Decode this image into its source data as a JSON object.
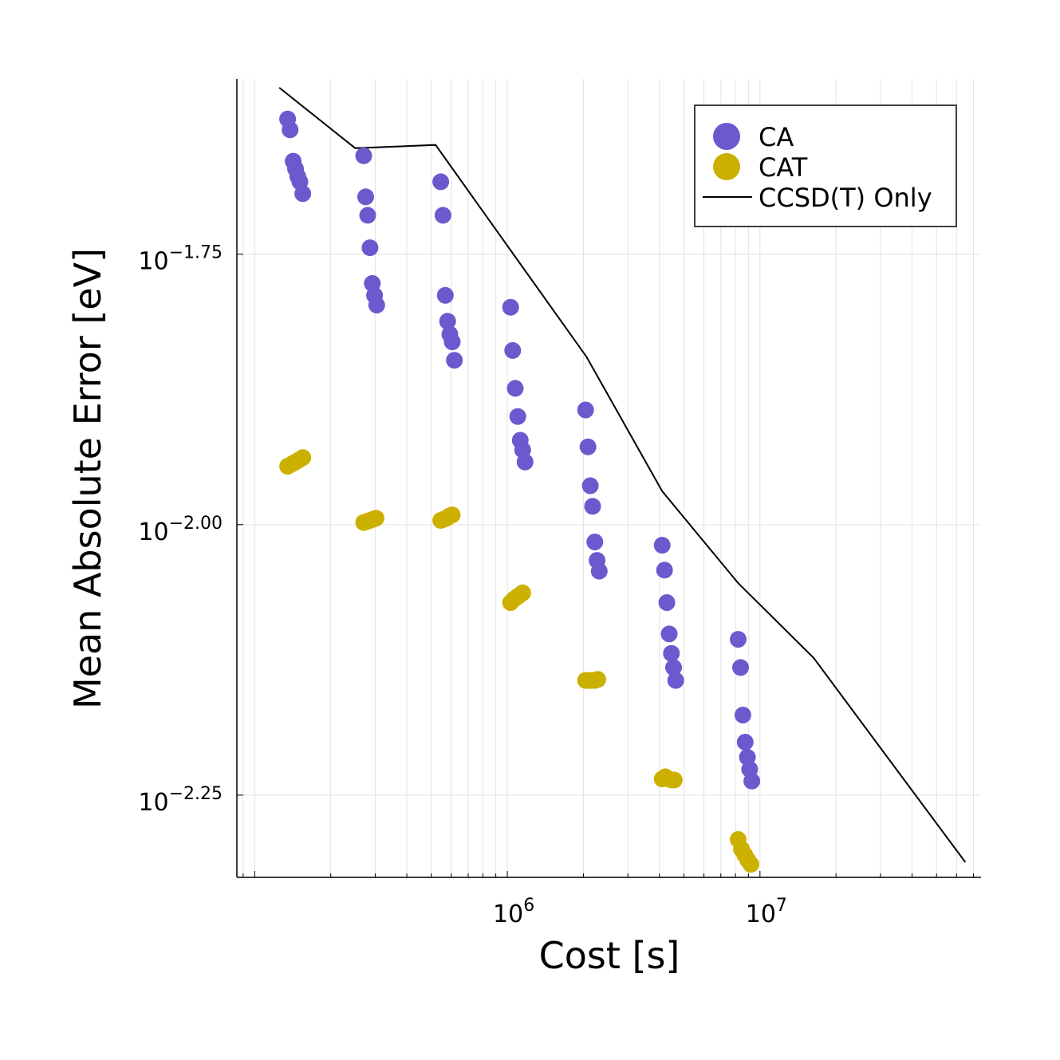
{
  "chart_data": {
    "type": "scatter",
    "x_scale": "log10",
    "y_scale": "log10",
    "xlabel": "Cost [s]",
    "ylabel": "Mean Absolute Error [eV]",
    "xlim": [
      85000,
      75000000
    ],
    "ylim_log10": [
      -2.326,
      -1.588
    ],
    "grid": true,
    "legend_position": "top-right",
    "x_ticks": [
      {
        "value": 1000000,
        "base": "10",
        "exp": "6"
      },
      {
        "value": 10000000,
        "base": "10",
        "exp": "7"
      }
    ],
    "y_ticks": [
      {
        "log10": -1.75,
        "base": "10",
        "exp": "−1.75"
      },
      {
        "log10": -2.0,
        "base": "10",
        "exp": "−2.00"
      },
      {
        "log10": -2.25,
        "base": "10",
        "exp": "−2.25"
      }
    ],
    "series": [
      {
        "name": "CA",
        "kind": "scatter",
        "color": "#6a5acd",
        "points": [
          [
            135000,
            -1.625
          ],
          [
            138000,
            -1.635
          ],
          [
            142000,
            -1.664
          ],
          [
            145000,
            -1.671
          ],
          [
            148000,
            -1.678
          ],
          [
            151000,
            -1.683
          ],
          [
            155000,
            -1.694
          ],
          [
            270000,
            -1.659
          ],
          [
            275000,
            -1.697
          ],
          [
            280000,
            -1.714
          ],
          [
            286000,
            -1.744
          ],
          [
            292000,
            -1.777
          ],
          [
            298000,
            -1.788
          ],
          [
            304000,
            -1.797
          ],
          [
            545000,
            -1.683
          ],
          [
            556000,
            -1.714
          ],
          [
            568000,
            -1.788
          ],
          [
            580000,
            -1.812
          ],
          [
            592000,
            -1.824
          ],
          [
            605000,
            -1.831
          ],
          [
            617000,
            -1.848
          ],
          [
            1030000,
            -1.799
          ],
          [
            1050000,
            -1.839
          ],
          [
            1075000,
            -1.874
          ],
          [
            1100000,
            -1.9
          ],
          [
            1125000,
            -1.922
          ],
          [
            1150000,
            -1.931
          ],
          [
            1175000,
            -1.942
          ],
          [
            2040000,
            -1.894
          ],
          [
            2085000,
            -1.928
          ],
          [
            2130000,
            -1.964
          ],
          [
            2175000,
            -1.983
          ],
          [
            2220000,
            -2.016
          ],
          [
            2265000,
            -2.033
          ],
          [
            2310000,
            -2.043
          ],
          [
            4100000,
            -2.019
          ],
          [
            4190000,
            -2.042
          ],
          [
            4280000,
            -2.072
          ],
          [
            4370000,
            -2.101
          ],
          [
            4460000,
            -2.119
          ],
          [
            4550000,
            -2.132
          ],
          [
            4640000,
            -2.144
          ],
          [
            8200000,
            -2.106
          ],
          [
            8380000,
            -2.132
          ],
          [
            8560000,
            -2.176
          ],
          [
            8740000,
            -2.201
          ],
          [
            8920000,
            -2.215
          ],
          [
            9100000,
            -2.226
          ],
          [
            9280000,
            -2.237
          ]
        ]
      },
      {
        "name": "CAT",
        "kind": "scatter",
        "color": "#ccb000",
        "points": [
          [
            135000,
            -1.946
          ],
          [
            140000,
            -1.944
          ],
          [
            145000,
            -1.942
          ],
          [
            150000,
            -1.94
          ],
          [
            155000,
            -1.938
          ],
          [
            270000,
            -1.998
          ],
          [
            278000,
            -1.997
          ],
          [
            286000,
            -1.996
          ],
          [
            294000,
            -1.995
          ],
          [
            302000,
            -1.994
          ],
          [
            545000,
            -1.996
          ],
          [
            560000,
            -1.995
          ],
          [
            575000,
            -1.994
          ],
          [
            590000,
            -1.992
          ],
          [
            605000,
            -1.991
          ],
          [
            1030000,
            -2.072
          ],
          [
            1060000,
            -2.069
          ],
          [
            1090000,
            -2.067
          ],
          [
            1120000,
            -2.065
          ],
          [
            1150000,
            -2.063
          ],
          [
            2040000,
            -2.144
          ],
          [
            2100000,
            -2.144
          ],
          [
            2160000,
            -2.144
          ],
          [
            2220000,
            -2.144
          ],
          [
            2280000,
            -2.143
          ],
          [
            4100000,
            -2.235
          ],
          [
            4220000,
            -2.233
          ],
          [
            4340000,
            -2.235
          ],
          [
            4460000,
            -2.236
          ],
          [
            4580000,
            -2.236
          ],
          [
            8200000,
            -2.291
          ],
          [
            8450000,
            -2.3
          ],
          [
            8700000,
            -2.305
          ],
          [
            8950000,
            -2.31
          ],
          [
            9200000,
            -2.314
          ]
        ]
      },
      {
        "name": "CCSD(T) Only",
        "kind": "line",
        "color": "#000000",
        "points": [
          [
            125000,
            -1.596
          ],
          [
            250000,
            -1.652
          ],
          [
            520000,
            -1.649
          ],
          [
            2060000,
            -1.845
          ],
          [
            4100000,
            -1.969
          ],
          [
            8200000,
            -2.054
          ],
          [
            16300000,
            -2.123
          ],
          [
            65000000,
            -2.312
          ]
        ]
      }
    ]
  }
}
